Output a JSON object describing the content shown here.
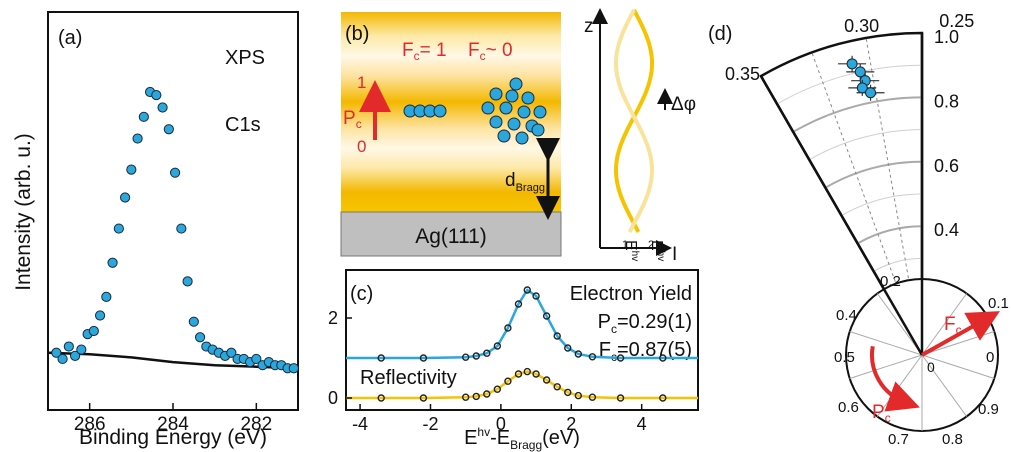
{
  "colors": {
    "marker": "#2aa7dc",
    "marker_edge": "#1a2a3a",
    "red": "#e22a2a",
    "gold": "#f5c400",
    "blue_line": "#2aa7dc",
    "gold_line": "#f5c400",
    "grey": "#aaaaaa",
    "substrate": "#bfbfbf"
  },
  "panel_a": {
    "label": "(a)",
    "ylabel": "Intensity (arb. u.)",
    "xlabel": "Binding Energy (eV)",
    "annot1": "XPS",
    "annot2": "C1s",
    "chart_data": {
      "type": "scatter",
      "xlim": [
        287.0,
        281.0
      ],
      "ylim": [
        0,
        1.0
      ],
      "x_ticks": [
        286,
        284,
        282
      ],
      "x_tick_labels": [
        "286",
        "284",
        "282"
      ],
      "points_x": [
        286.8,
        286.65,
        286.5,
        286.35,
        286.2,
        286.05,
        285.9,
        285.75,
        285.6,
        285.45,
        285.3,
        285.15,
        285.0,
        284.85,
        284.7,
        284.55,
        284.4,
        284.25,
        284.1,
        283.95,
        283.8,
        283.65,
        283.5,
        283.35,
        283.2,
        283.05,
        282.9,
        282.75,
        282.6,
        282.45,
        282.3,
        282.15,
        282.0,
        281.85,
        281.7,
        281.55,
        281.4,
        281.25,
        281.1
      ],
      "points_y": [
        0.12,
        0.1,
        0.14,
        0.11,
        0.13,
        0.18,
        0.19,
        0.24,
        0.3,
        0.41,
        0.52,
        0.62,
        0.71,
        0.81,
        0.88,
        0.96,
        0.95,
        0.91,
        0.84,
        0.7,
        0.52,
        0.35,
        0.22,
        0.17,
        0.14,
        0.13,
        0.12,
        0.11,
        0.12,
        0.1,
        0.1,
        0.09,
        0.1,
        0.08,
        0.09,
        0.08,
        0.08,
        0.07,
        0.07
      ],
      "background_x": [
        287.0,
        286.0,
        285.0,
        284.0,
        283.0,
        282.0,
        281.0
      ],
      "background_y": [
        0.12,
        0.115,
        0.105,
        0.09,
        0.08,
        0.075,
        0.07
      ]
    }
  },
  "panel_b": {
    "label": "(b)",
    "fc1": "F",
    "fc1_sub": "c",
    "fc1_val": "= 1",
    "fc2": "F",
    "fc2_sub": "c",
    "fc2_val": "~ 0",
    "pc_top": "1",
    "pc_bottom": "0",
    "pc_label": "P",
    "pc_sub": "c",
    "dbragg": "d",
    "dbragg_sub": "Bragg",
    "substrate": "Ag(111)",
    "z_axis": "z",
    "l_axis": "I",
    "dphi": "Δφ",
    "e1": "E",
    "e1_sup": "hv",
    "e1_sub": "1",
    "e2": "E",
    "e2_sup": "hv",
    "e2_sub": "2"
  },
  "panel_c": {
    "label": "(c)",
    "title1": "Electron Yield",
    "pc_text": "P",
    "pc_sub": "c",
    "pc_val": "=0.29(1)",
    "fc_text": "F",
    "fc_sub": "c",
    "fc_val": "=0.87(5)",
    "refl": "Reflectivity",
    "xlabel_main": "E",
    "xlabel_sup": "hv",
    "xlabel_mid": "-E",
    "xlabel_sub": "Bragg",
    "xlabel_unit": "(eV)",
    "chart_data": {
      "type": "line",
      "xlim": [
        -4.4,
        5.6
      ],
      "ylim": [
        -0.3,
        3.2
      ],
      "x_ticks": [
        -4,
        -2,
        0,
        2,
        4
      ],
      "x_tick_labels": [
        "-4",
        "-2",
        "0",
        "2",
        "4"
      ],
      "y_ticks": [
        0,
        2
      ],
      "y_tick_labels": [
        "0",
        "2"
      ],
      "series": [
        {
          "name": "Electron Yield",
          "x": [
            -3.4,
            -2.2,
            -1.0,
            -0.7,
            -0.4,
            -0.1,
            0.2,
            0.5,
            0.75,
            1.0,
            1.3,
            1.6,
            1.9,
            2.2,
            2.6,
            3.4,
            4.6
          ],
          "y": [
            1.0,
            1.0,
            1.02,
            1.05,
            1.12,
            1.3,
            1.75,
            2.35,
            2.7,
            2.55,
            2.05,
            1.55,
            1.25,
            1.1,
            1.03,
            1.0,
            1.0
          ]
        },
        {
          "name": "Reflectivity",
          "x": [
            -3.4,
            -2.2,
            -1.0,
            -0.7,
            -0.4,
            -0.1,
            0.2,
            0.5,
            0.75,
            1.0,
            1.3,
            1.6,
            1.9,
            2.2,
            2.6,
            3.4,
            4.6
          ],
          "y": [
            0.0,
            0.0,
            0.02,
            0.04,
            0.1,
            0.22,
            0.42,
            0.6,
            0.66,
            0.6,
            0.45,
            0.28,
            0.14,
            0.06,
            0.02,
            0.0,
            0.0
          ]
        }
      ]
    }
  },
  "panel_d": {
    "label": "(d)",
    "outer_radial_ticks": [
      "0.4",
      "0.6",
      "0.8",
      "1.0"
    ],
    "outer_angle_ticks": [
      "0.35",
      "0.30",
      "0.25"
    ],
    "small_angle_ticks": [
      "0.1",
      "0.2",
      "0.4",
      "0.5",
      "0.6",
      "0.7",
      "0.8",
      "0.9",
      "0"
    ],
    "fc_label": "F",
    "fc_sub": "c",
    "pc_label": "P",
    "pc_sub": "c",
    "chart_data": {
      "type": "scatter",
      "coordinate_system": "polar",
      "angular_variable": "Pc",
      "radial_variable": "Fc",
      "radial_range": [
        0,
        1.0
      ],
      "angular_ticks_zoom": [
        0.35,
        0.3,
        0.25
      ],
      "points_pc": [
        0.295,
        0.291,
        0.289,
        0.292,
        0.287
      ],
      "points_fc": [
        0.93,
        0.9,
        0.87,
        0.85,
        0.83
      ]
    }
  }
}
